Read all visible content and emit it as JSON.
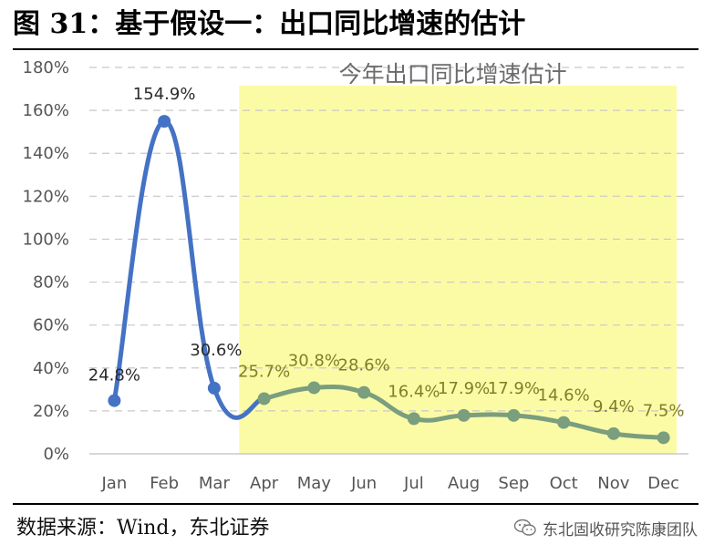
{
  "figure": {
    "title": "图 31：基于假设一：出口同比增速的估计",
    "source": "数据来源：Wind，东北证券",
    "watermark": "东北固收研究陈康团队"
  },
  "colors": {
    "actual_line": "#4472c4",
    "estimate_line": "#7a9e7e",
    "actual_label": "#2b2b2b",
    "estimate_label": "#7f7f2a",
    "highlight_fill": "#fbfba6",
    "grid": "#c8c8c8"
  },
  "icons": {
    "watermark": "wechat-icon"
  },
  "chart_data": {
    "type": "line",
    "title": "",
    "xlabel": "",
    "ylabel": "",
    "categories": [
      "Jan",
      "Feb",
      "Mar",
      "Apr",
      "May",
      "Jun",
      "Jul",
      "Aug",
      "Sep",
      "Oct",
      "Nov",
      "Dec"
    ],
    "y_ticks": [
      "0%",
      "20%",
      "40%",
      "60%",
      "80%",
      "100%",
      "120%",
      "140%",
      "160%",
      "180%"
    ],
    "ylim": [
      0,
      180
    ],
    "grid": "horizontal dashed",
    "series": [
      {
        "x": [
          "Jan",
          "Feb",
          "Mar"
        ],
        "values": [
          24.8,
          154.9,
          30.6
        ],
        "labels": [
          "24.8%",
          "154.9%",
          "30.6%"
        ]
      },
      {
        "x": [
          "Apr",
          "May",
          "Jun",
          "Jul",
          "Aug",
          "Sep",
          "Oct",
          "Nov",
          "Dec"
        ],
        "values": [
          25.7,
          30.8,
          28.6,
          16.4,
          17.9,
          17.9,
          14.6,
          9.4,
          7.5
        ],
        "labels": [
          "25.7%",
          "30.8%",
          "28.6%",
          "16.4%",
          "17.9%",
          "17.9%",
          "14.6%",
          "9.4%",
          "7.5%"
        ]
      }
    ],
    "annotations": [
      {
        "text": "今年出口同比增速估计",
        "span": [
          "Apr",
          "Dec"
        ]
      }
    ]
  }
}
